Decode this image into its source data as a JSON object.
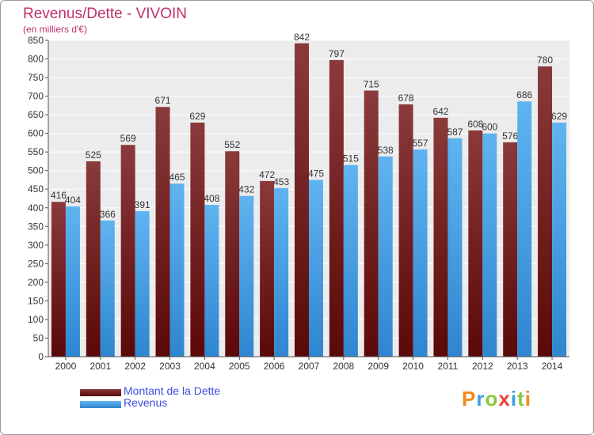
{
  "chart_data": {
    "type": "bar",
    "title": "Revenus/Dette - VIVOIN",
    "subtitle": "(en milliers d'€)",
    "categories": [
      "2000",
      "2001",
      "2002",
      "2003",
      "2004",
      "2005",
      "2006",
      "2007",
      "2008",
      "2009",
      "2010",
      "2011",
      "2012",
      "2013",
      "2014"
    ],
    "series": [
      {
        "name": "Montant de la Dette",
        "values": [
          416,
          525,
          569,
          671,
          629,
          552,
          472,
          842,
          797,
          715,
          678,
          642,
          608,
          576,
          780
        ],
        "color": "#7a2a2a"
      },
      {
        "name": "Revenus",
        "values": [
          404,
          366,
          391,
          465,
          408,
          432,
          453,
          475,
          515,
          538,
          557,
          587,
          600,
          686,
          629
        ],
        "color": "#4aa3e8"
      }
    ],
    "ylim": [
      0,
      850
    ],
    "yticks": [
      0,
      50,
      100,
      150,
      200,
      250,
      300,
      350,
      400,
      450,
      500,
      550,
      600,
      650,
      700,
      750,
      800,
      850
    ],
    "grid": true,
    "legend_position": "bottom-left"
  },
  "logo": {
    "letters": [
      {
        "ch": "P",
        "color": "#f08a1c"
      },
      {
        "ch": "r",
        "color": "#3aa0e0"
      },
      {
        "ch": "o",
        "color": "#8cc63f"
      },
      {
        "ch": "x",
        "color": "#e8433a"
      },
      {
        "ch": "i",
        "color": "#3aa0e0"
      },
      {
        "ch": "t",
        "color": "#8cc63f"
      },
      {
        "ch": "i",
        "color": "#f08a1c"
      }
    ]
  }
}
